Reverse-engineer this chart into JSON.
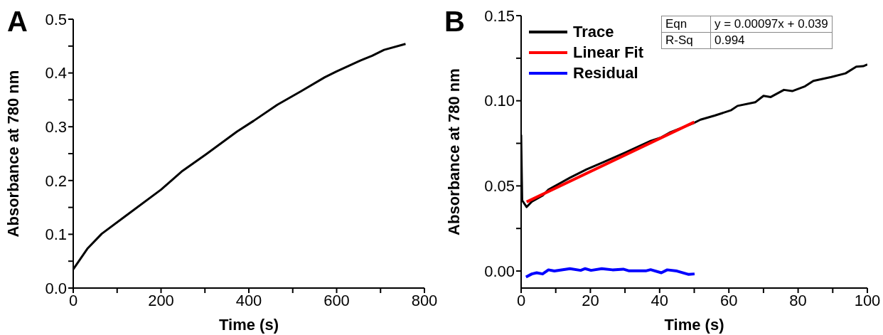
{
  "chart_data": [
    {
      "type": "line",
      "title": "A",
      "xlabel": "Time (s)",
      "ylabel": "Absorbance at 780 nm",
      "xlim": [
        0,
        800
      ],
      "ylim": [
        0,
        0.5
      ],
      "xticks": [
        0,
        {
          "value": 100,
          "label": null
        },
        200,
        {
          "value": 300,
          "label": null
        },
        400,
        {
          "value": 500,
          "label": null
        },
        600,
        {
          "value": 700,
          "label": null
        },
        800
      ],
      "yticks": [
        {
          "value": 0,
          "label": "0.0"
        },
        {
          "value": 0.05,
          "label": null
        },
        {
          "value": 0.1,
          "label": "0.1"
        },
        {
          "value": 0.15,
          "label": null
        },
        {
          "value": 0.2,
          "label": "0.2"
        },
        {
          "value": 0.25,
          "label": null
        },
        {
          "value": 0.3,
          "label": "0.3"
        },
        {
          "value": 0.35,
          "label": null
        },
        {
          "value": 0.4,
          "label": "0.4"
        },
        {
          "value": 0.45,
          "label": null
        },
        {
          "value": 0.5,
          "label": "0.5"
        }
      ],
      "grid": false,
      "series": [
        {
          "color": "#000000",
          "x": [
            0,
            32,
            65,
            124,
            200,
            249,
            303,
            373,
            411,
            465,
            519,
            573,
            600,
            654,
            681,
            708,
            757
          ],
          "values": [
            0.035,
            0.073,
            0.101,
            0.137,
            0.183,
            0.218,
            0.249,
            0.291,
            0.311,
            0.341,
            0.366,
            0.392,
            0.403,
            0.423,
            0.432,
            0.443,
            0.454
          ]
        }
      ]
    },
    {
      "type": "line",
      "title": "B",
      "xlabel": "Time (s)",
      "ylabel": "Absorbance at 780 nm",
      "xlim": [
        0,
        100
      ],
      "ylim": [
        -0.01,
        0.15
      ],
      "xticks": [
        0,
        {
          "value": 10,
          "label": null
        },
        20,
        {
          "value": 30,
          "label": null
        },
        40,
        {
          "value": 50,
          "label": null
        },
        60,
        {
          "value": 70,
          "label": null
        },
        80,
        {
          "value": 90,
          "label": null
        },
        100
      ],
      "yticks": [
        {
          "value": 0,
          "label": "0.00"
        },
        {
          "value": 0.025,
          "label": null
        },
        {
          "value": 0.05,
          "label": "0.05"
        },
        {
          "value": 0.075,
          "label": null
        },
        {
          "value": 0.1,
          "label": "0.10"
        },
        {
          "value": 0.125,
          "label": null
        },
        {
          "value": 0.15,
          "label": "0.15"
        }
      ],
      "grid": false,
      "legend": "top left",
      "annotations": [
        "Eqn",
        "y = 0.00097x + 0.039",
        "R-Sq",
        "0.994"
      ],
      "series": [
        {
          "name": "Trace",
          "color": "#000000",
          "x": [
            0,
            0.3,
            1.6,
            3.1,
            6.2,
            7.9,
            14.1,
            18.9,
            23.7,
            29.9,
            37.4,
            40.5,
            42.9,
            49.8,
            51.8,
            55.9,
            60.7,
            62.5,
            67.6,
            70,
            72.1,
            75.9,
            78.3,
            82,
            84.4,
            89.6,
            93.7,
            96.8,
            98.8,
            100
          ],
          "values": [
            0.08,
            0.0415,
            0.0376,
            0.0408,
            0.0443,
            0.0478,
            0.0548,
            0.0597,
            0.0639,
            0.0694,
            0.0764,
            0.0785,
            0.0813,
            0.0869,
            0.0889,
            0.0913,
            0.0945,
            0.097,
            0.0991,
            0.1029,
            0.1022,
            0.1064,
            0.1057,
            0.1085,
            0.1117,
            0.114,
            0.1161,
            0.12,
            0.1203,
            0.1213
          ]
        },
        {
          "name": "Linear Fit",
          "color": "#ff0000",
          "x": [
            1.6,
            50
          ],
          "values": [
            0.0406,
            0.0875
          ]
        },
        {
          "name": "Residual",
          "color": "#0000ff",
          "x": [
            1.4,
            3.1,
            4.5,
            6.2,
            7.9,
            9.6,
            14.1,
            17.2,
            18.5,
            20.2,
            23.3,
            26.4,
            29.5,
            31.2,
            36,
            37.4,
            40.5,
            42.2,
            45,
            48.4,
            50.1
          ],
          "values": [
            -0.0035,
            -0.0017,
            -0.001,
            -0.0017,
            0.0007,
            0,
            0.0014,
            0.0004,
            0.0014,
            0.0004,
            0.0014,
            0.0007,
            0.0011,
            0.0001,
            0.0001,
            0.0008,
            -0.001,
            0.0007,
            0,
            -0.002,
            -0.0017
          ]
        }
      ]
    }
  ]
}
